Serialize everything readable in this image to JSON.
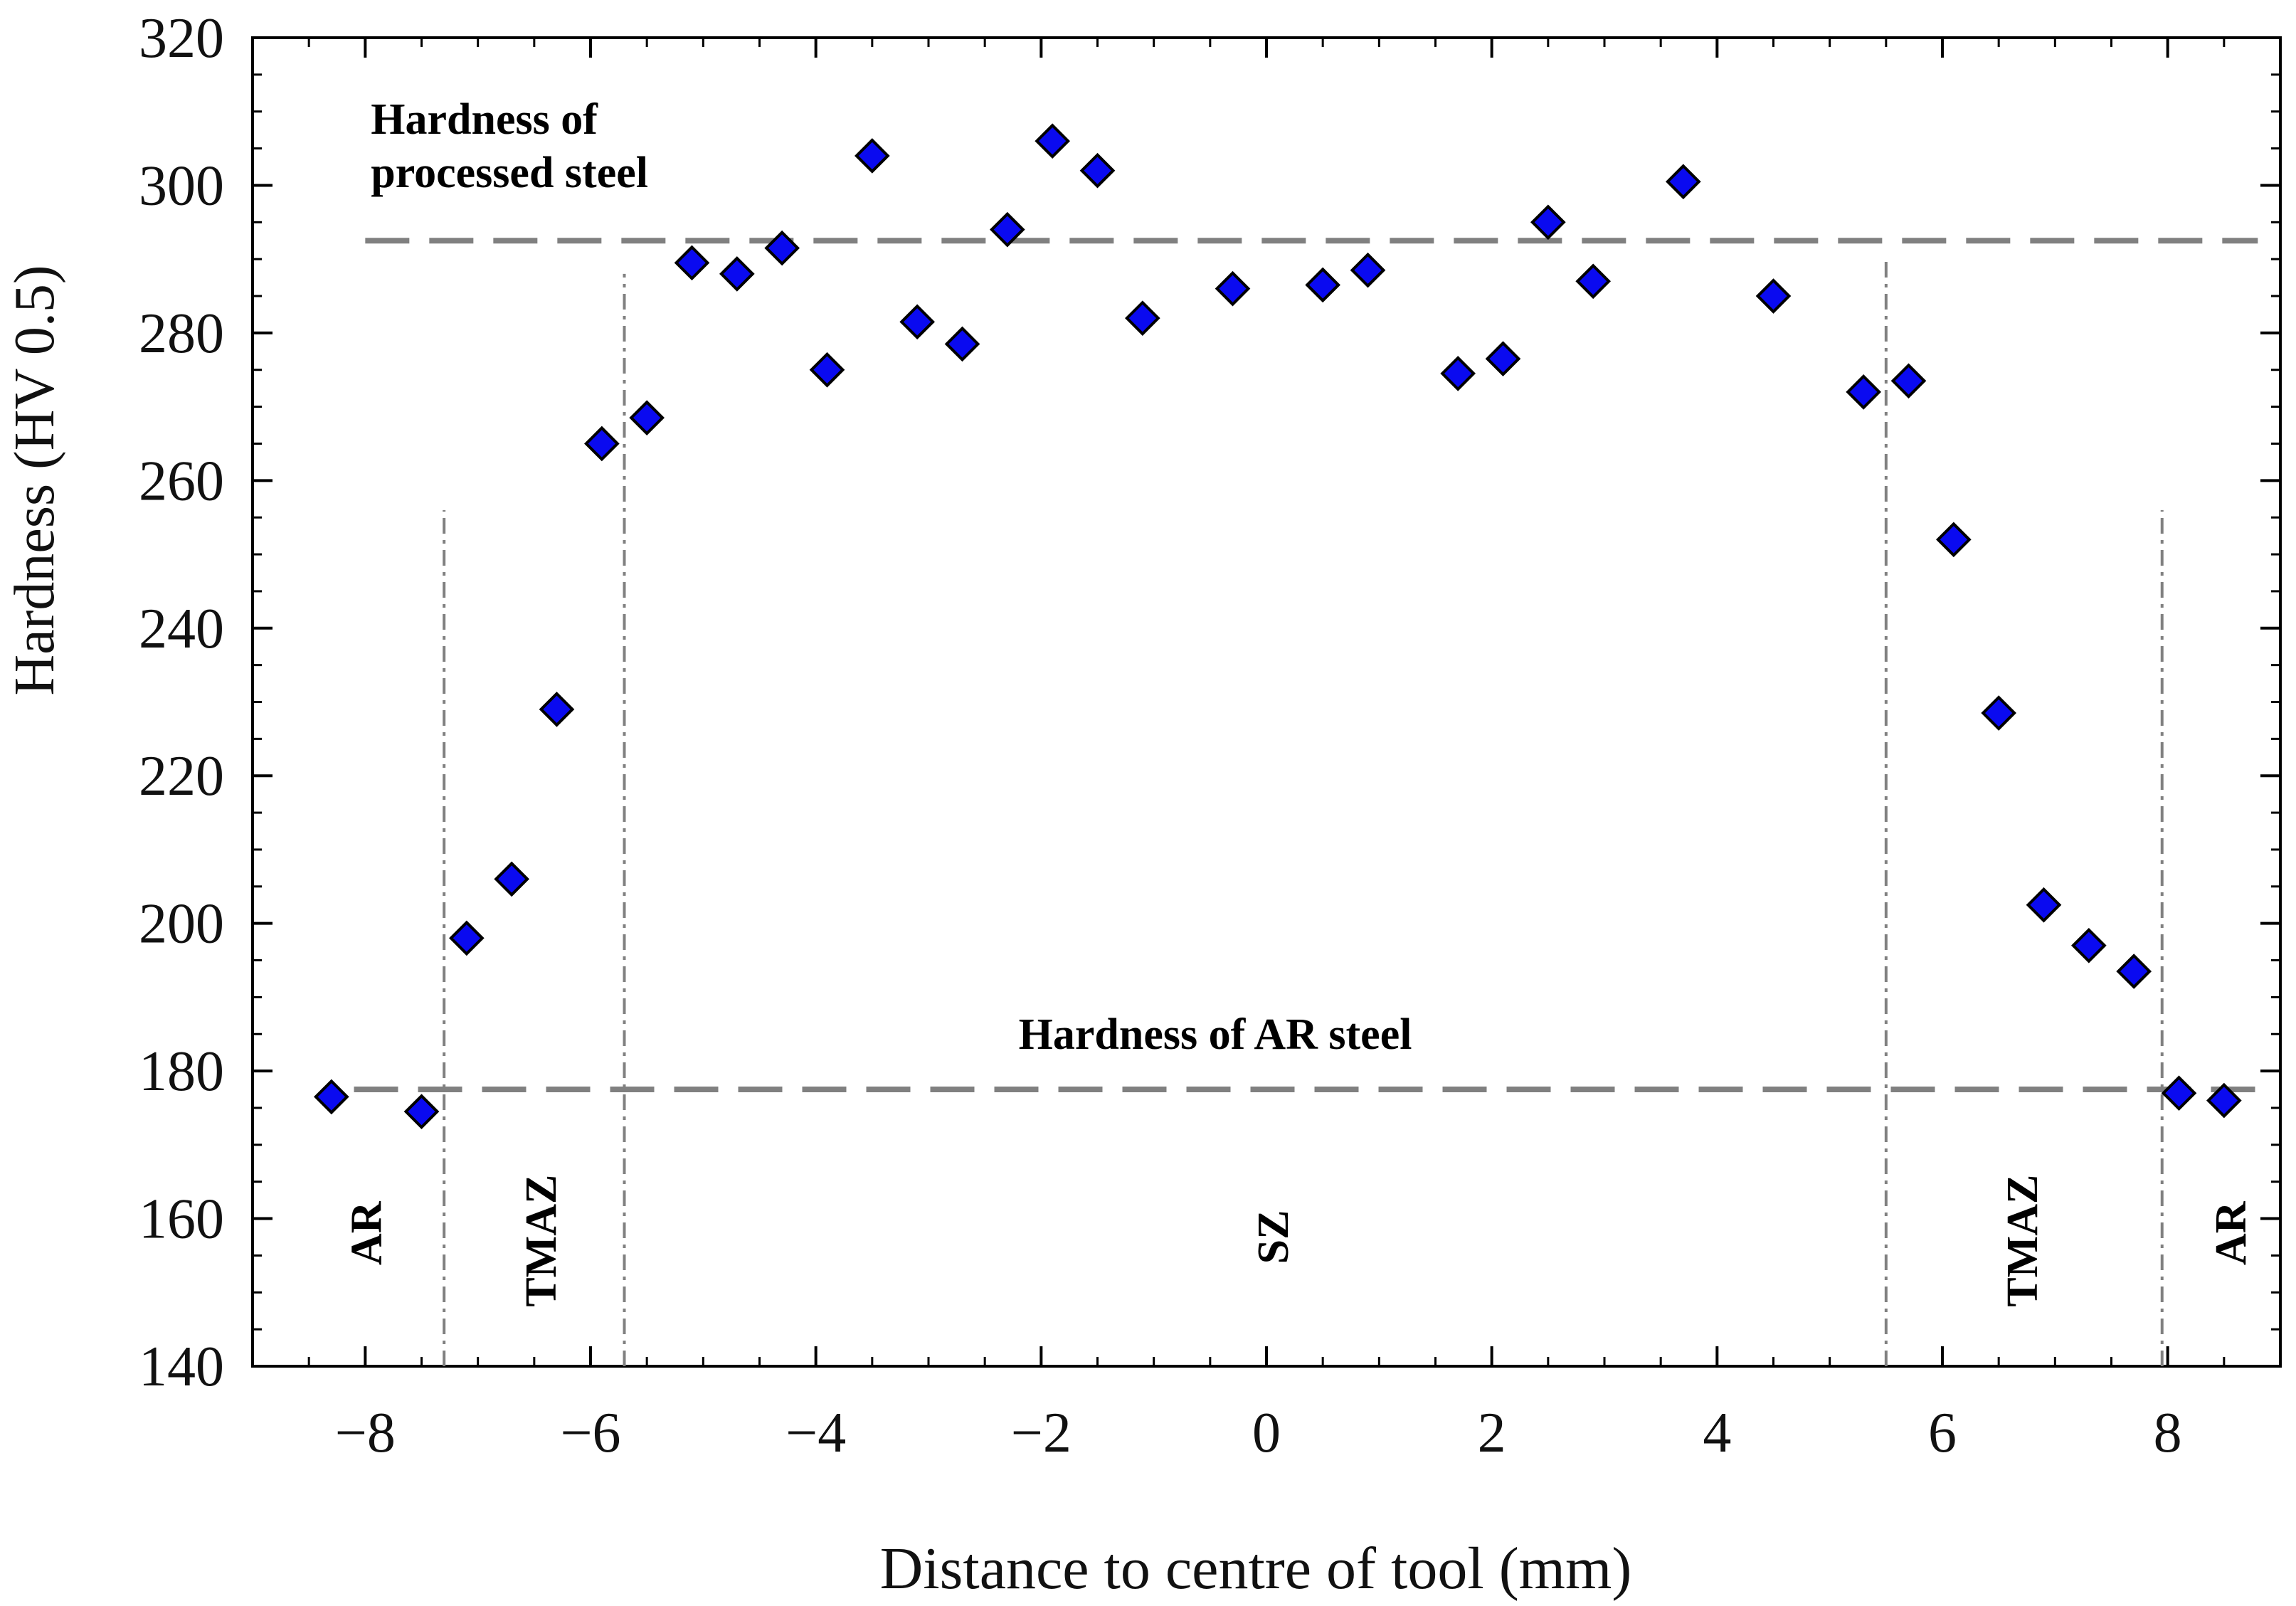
{
  "chart_data": {
    "type": "scatter",
    "title": "",
    "xlabel": "Distance to centre of tool (mm)",
    "ylabel": "Hardness (HV 0.5)",
    "xlim": [
      -9,
      9
    ],
    "ylim": [
      140,
      320
    ],
    "xticks": [
      -8,
      -6,
      -4,
      -2,
      0,
      2,
      4,
      6,
      8
    ],
    "xtick_labels": [
      "−8",
      "−6",
      "−4",
      "−2",
      "0",
      "2",
      "4",
      "6",
      "8"
    ],
    "yticks": [
      140,
      160,
      180,
      200,
      220,
      240,
      260,
      280,
      300,
      320
    ],
    "ytick_labels": [
      "140",
      "160",
      "180",
      "200",
      "220",
      "240",
      "260",
      "280",
      "300",
      "320"
    ],
    "marker": "diamond",
    "marker_color": "#0a0af0",
    "series": [
      {
        "name": "Hardness",
        "points": [
          {
            "x": -8.3,
            "y": 176.5
          },
          {
            "x": -7.5,
            "y": 174.5
          },
          {
            "x": -7.1,
            "y": 198
          },
          {
            "x": -6.7,
            "y": 206
          },
          {
            "x": -6.3,
            "y": 229
          },
          {
            "x": -5.9,
            "y": 265
          },
          {
            "x": -5.5,
            "y": 268.5
          },
          {
            "x": -5.1,
            "y": 289.5
          },
          {
            "x": -4.7,
            "y": 288
          },
          {
            "x": -4.3,
            "y": 291.5
          },
          {
            "x": -3.9,
            "y": 275
          },
          {
            "x": -3.5,
            "y": 304
          },
          {
            "x": -3.1,
            "y": 281.5
          },
          {
            "x": -2.7,
            "y": 278.5
          },
          {
            "x": -2.3,
            "y": 294
          },
          {
            "x": -1.9,
            "y": 306
          },
          {
            "x": -1.5,
            "y": 302
          },
          {
            "x": -1.1,
            "y": 282
          },
          {
            "x": -0.3,
            "y": 286
          },
          {
            "x": 0.5,
            "y": 286.5
          },
          {
            "x": 0.9,
            "y": 288.5
          },
          {
            "x": 1.7,
            "y": 274.5
          },
          {
            "x": 2.1,
            "y": 276.5
          },
          {
            "x": 2.5,
            "y": 295
          },
          {
            "x": 2.9,
            "y": 287
          },
          {
            "x": 3.7,
            "y": 300.5
          },
          {
            "x": 4.5,
            "y": 285
          },
          {
            "x": 5.3,
            "y": 272
          },
          {
            "x": 5.7,
            "y": 273.5
          },
          {
            "x": 6.1,
            "y": 252
          },
          {
            "x": 6.5,
            "y": 228.5
          },
          {
            "x": 6.9,
            "y": 202.5
          },
          {
            "x": 7.3,
            "y": 197
          },
          {
            "x": 7.7,
            "y": 193.5
          },
          {
            "x": 8.1,
            "y": 177
          },
          {
            "x": 8.5,
            "y": 176
          }
        ]
      }
    ],
    "reference_lines": [
      {
        "name": "processed-steel",
        "y": 292.5,
        "x_range": [
          -8,
          8.8
        ],
        "style": "dashed",
        "color": "#808080"
      },
      {
        "name": "ar-steel",
        "y": 177.5,
        "x_range": [
          -8.1,
          8.9
        ],
        "style": "dashed",
        "color": "#808080"
      }
    ],
    "boundary_lines": [
      {
        "x": -7.3,
        "y_range": [
          140,
          256
        ]
      },
      {
        "x": -5.7,
        "y_range": [
          140,
          288
        ]
      },
      {
        "x": 5.5,
        "y_range": [
          140,
          290
        ]
      },
      {
        "x": 7.95,
        "y_range": [
          140,
          256
        ]
      }
    ],
    "annotations": [
      {
        "name": "processed-steel-label",
        "lines": [
          "Hardness of",
          "processed steel"
        ],
        "x": -7.95,
        "y": 307
      },
      {
        "name": "ar-steel-label",
        "lines": [
          "Hardness of AR steel"
        ],
        "x": -2.2,
        "y": 183
      },
      {
        "name": "zone-ar-left",
        "text": "AR",
        "x": -8.0,
        "y": 158,
        "rotate": true
      },
      {
        "name": "zone-tmaz-left",
        "text": "TMAZ",
        "x": -6.45,
        "y": 157,
        "rotate": true
      },
      {
        "name": "zone-sz",
        "text": "SZ",
        "x": 0.05,
        "y": 157.5,
        "rotate": true
      },
      {
        "name": "zone-tmaz-right",
        "text": "TMAZ",
        "x": 6.7,
        "y": 157,
        "rotate": true
      },
      {
        "name": "zone-ar-right",
        "text": "AR",
        "x": 8.55,
        "y": 158,
        "rotate": true
      }
    ]
  }
}
